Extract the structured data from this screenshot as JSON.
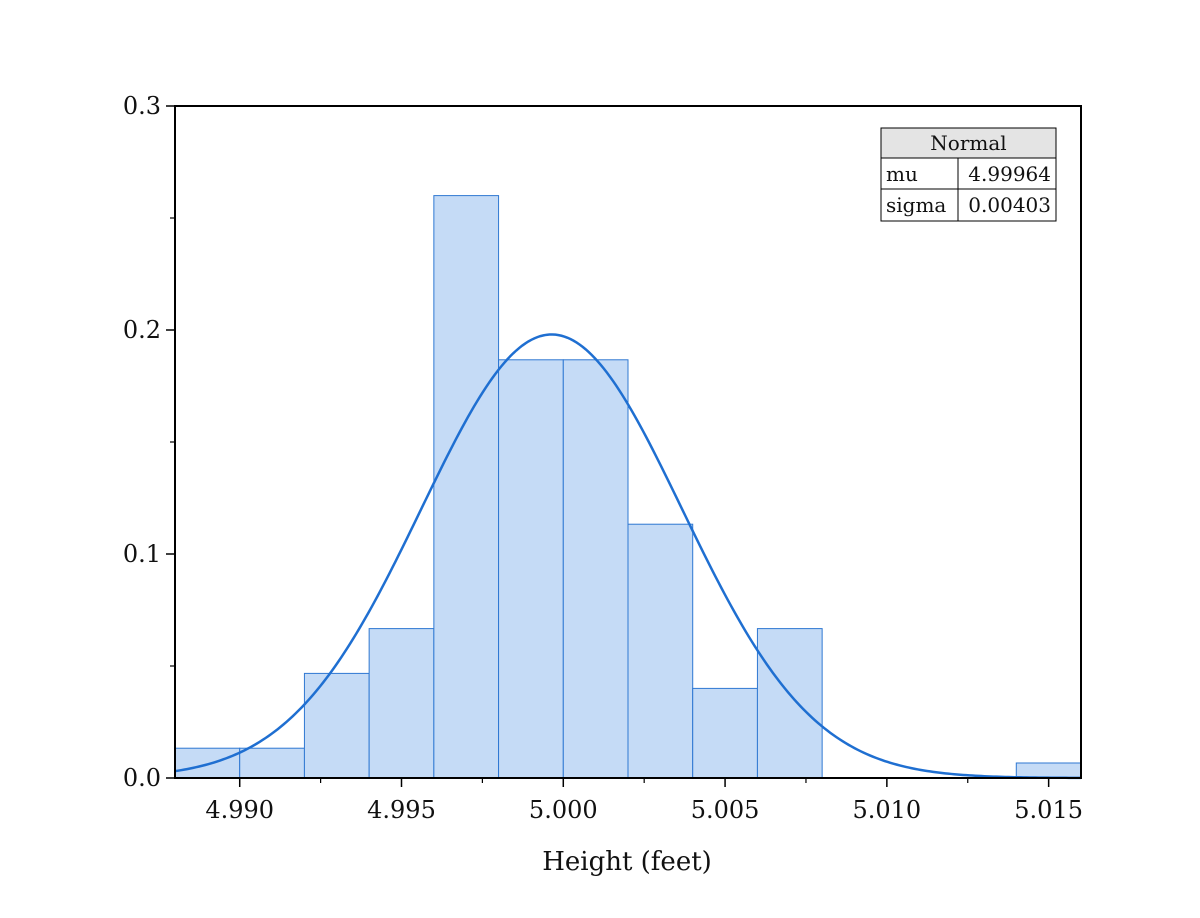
{
  "chart_data": {
    "type": "bar",
    "title": "",
    "xlabel": "Height (feet)",
    "ylabel": "",
    "xlim": [
      4.988,
      5.016
    ],
    "ylim": [
      0,
      0.3
    ],
    "x_ticks": [
      4.99,
      4.995,
      5.0,
      5.005,
      5.01,
      5.015
    ],
    "x_tick_labels": [
      "4.990",
      "4.995",
      "5.000",
      "5.005",
      "5.010",
      "5.015"
    ],
    "y_ticks": [
      0.0,
      0.1,
      0.2,
      0.3
    ],
    "y_tick_labels": [
      "0.0",
      "0.1",
      "0.2",
      "0.3"
    ],
    "bins": [
      {
        "start": 4.988,
        "end": 4.99,
        "value": 0.0133
      },
      {
        "start": 4.99,
        "end": 4.992,
        "value": 0.0133
      },
      {
        "start": 4.992,
        "end": 4.994,
        "value": 0.0467
      },
      {
        "start": 4.994,
        "end": 4.996,
        "value": 0.0667
      },
      {
        "start": 4.996,
        "end": 4.998,
        "value": 0.26
      },
      {
        "start": 4.998,
        "end": 5.0,
        "value": 0.1867
      },
      {
        "start": 5.0,
        "end": 5.002,
        "value": 0.1867
      },
      {
        "start": 5.002,
        "end": 5.004,
        "value": 0.1133
      },
      {
        "start": 5.004,
        "end": 5.006,
        "value": 0.04
      },
      {
        "start": 5.006,
        "end": 5.008,
        "value": 0.0667
      },
      {
        "start": 5.014,
        "end": 5.016,
        "value": 0.0067
      }
    ],
    "fit": {
      "distribution": "Normal",
      "mu": 4.99964,
      "sigma": 0.00403,
      "peak_value": 0.198
    },
    "grid": false,
    "colors": {
      "bar_fill": "#c5dbf6",
      "bar_edge": "#2f78d2",
      "curve": "#1f6fd1"
    }
  },
  "stats_table": {
    "header": "Normal",
    "rows": [
      {
        "label": "mu",
        "value": "4.99964"
      },
      {
        "label": "sigma",
        "value": "0.00403"
      }
    ]
  }
}
